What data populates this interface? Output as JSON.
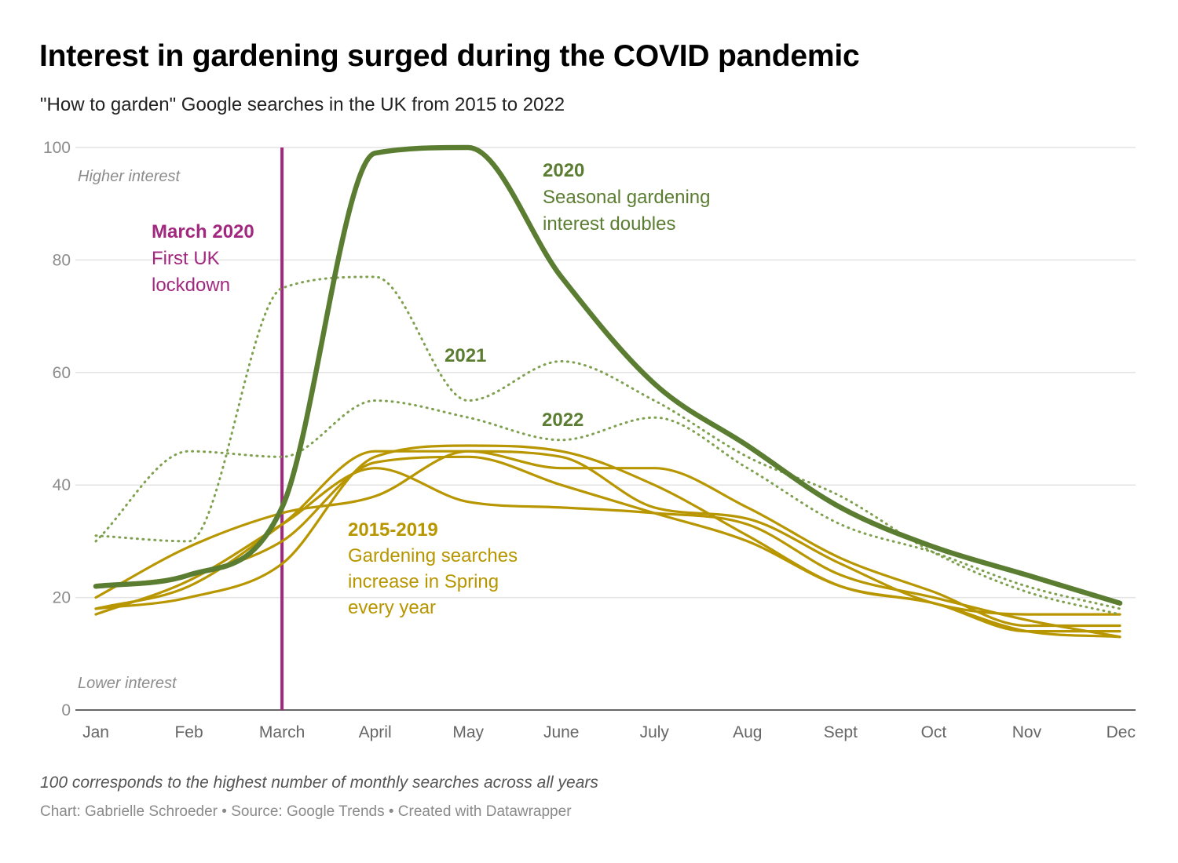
{
  "header": {
    "title": "Interest in gardening surged during the COVID pandemic",
    "subtitle": "\"How to garden\" Google searches in the UK from 2015 to 2022"
  },
  "footer": {
    "notes": "100 corresponds to the highest number of monthly searches across all years",
    "credits": "Chart: Gabrielle Schroeder • Source: Google Trends • Created with Datawrapper"
  },
  "colors": {
    "y2020": "#5b7d32",
    "y2021_2022": "#7fa14f",
    "y2015_2019": "#b89600",
    "lockdown": "#a2287f",
    "grid": "#e3e3e3",
    "axis": "#333333"
  },
  "chart_data": {
    "type": "line",
    "categories": [
      "Jan",
      "Feb",
      "March",
      "April",
      "May",
      "June",
      "July",
      "Aug",
      "Sept",
      "Oct",
      "Nov",
      "Dec"
    ],
    "ylim": [
      0,
      100
    ],
    "yticks": [
      0,
      20,
      40,
      60,
      80,
      100
    ],
    "grid": true,
    "axis_hints": {
      "top": "Higher interest",
      "bottom": "Lower interest"
    },
    "series": [
      {
        "name": "2020",
        "group": "y2020",
        "values": [
          22,
          24,
          36,
          99,
          100,
          77,
          58,
          47,
          36,
          29,
          24,
          19
        ]
      },
      {
        "name": "2021",
        "group": "y2021_2022",
        "dotted": true,
        "values": [
          31,
          30,
          75,
          77,
          55,
          62,
          55,
          45,
          38,
          28,
          21,
          17
        ]
      },
      {
        "name": "2022",
        "group": "y2021_2022",
        "dotted": true,
        "values": [
          30,
          46,
          45,
          55,
          52,
          48,
          52,
          43,
          33,
          28,
          22,
          18
        ]
      },
      {
        "group": "y2015_2019",
        "values": [
          18,
          20,
          26,
          45,
          47,
          46,
          40,
          31,
          22,
          19,
          14,
          14
        ]
      },
      {
        "group": "y2015_2019",
        "values": [
          17,
          23,
          33,
          43,
          37,
          36,
          35,
          33,
          24,
          20,
          16,
          13
        ]
      },
      {
        "group": "y2015_2019",
        "values": [
          20,
          29,
          35,
          38,
          46,
          43,
          43,
          36,
          27,
          21,
          15,
          15
        ]
      },
      {
        "group": "y2015_2019",
        "values": [
          18,
          22,
          33,
          46,
          46,
          45,
          36,
          34,
          26,
          19,
          17,
          17
        ]
      },
      {
        "group": "y2015_2019",
        "values": [
          22,
          24,
          30,
          44,
          45,
          40,
          35,
          30,
          22,
          19,
          14,
          13
        ]
      }
    ],
    "marker": {
      "category": "March",
      "label_bold": "March 2020",
      "label_lines": [
        "First UK",
        "lockdown"
      ]
    },
    "annotations": [
      {
        "id": "a2020",
        "bold": "2020",
        "lines": [
          "Seasonal gardening",
          "interest doubles"
        ]
      },
      {
        "id": "a2021",
        "bold": "2021",
        "lines": []
      },
      {
        "id": "a2022",
        "bold": "2022",
        "lines": []
      },
      {
        "id": "a2015",
        "bold": "2015-2019",
        "lines": [
          "Gardening searches",
          "increase in Spring",
          "every year"
        ]
      }
    ]
  }
}
